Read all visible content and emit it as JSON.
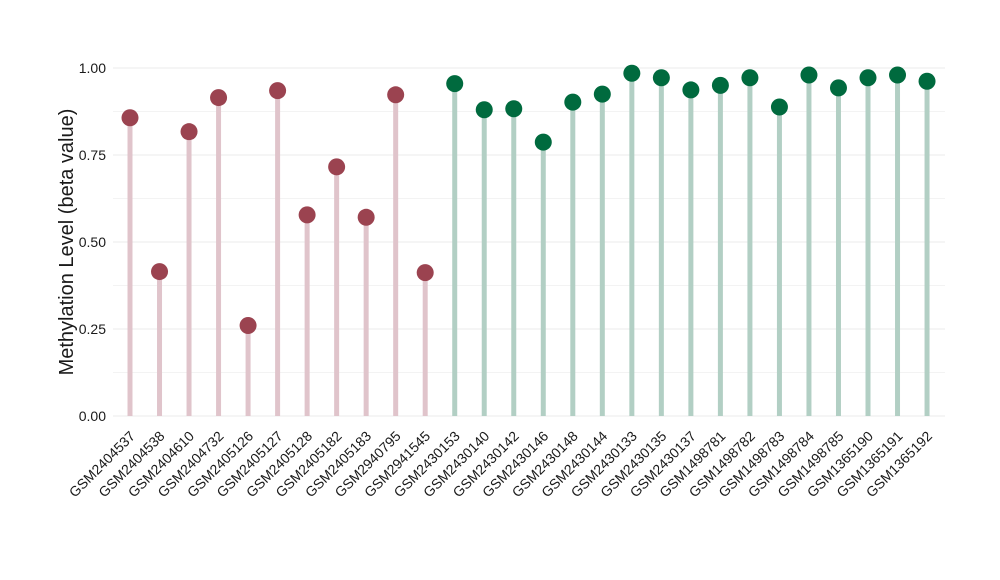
{
  "chart_data": {
    "type": "lollipop",
    "title": "",
    "xlabel": "",
    "ylabel": "Methylation Level (beta value)",
    "ylim": [
      0,
      1
    ],
    "yticks": [
      "0.00",
      "0.25",
      "0.50",
      "0.75",
      "1.00"
    ],
    "grid": true,
    "categories": [
      "GSM2404537",
      "GSM2404538",
      "GSM2404610",
      "GSM2404732",
      "GSM2405126",
      "GSM2405127",
      "GSM2405128",
      "GSM2405182",
      "GSM2405183",
      "GSM2940795",
      "GSM2941545",
      "GSM2430153",
      "GSM2430140",
      "GSM2430142",
      "GSM2430146",
      "GSM2430148",
      "GSM2430144",
      "GSM2430133",
      "GSM2430135",
      "GSM2430137",
      "GSM1498781",
      "GSM1498782",
      "GSM1498783",
      "GSM1498784",
      "GSM1498785",
      "GSM1365190",
      "GSM1365191",
      "GSM1365192"
    ],
    "values": [
      0.857,
      0.415,
      0.817,
      0.915,
      0.26,
      0.935,
      0.578,
      0.716,
      0.571,
      0.923,
      0.412,
      0.955,
      0.88,
      0.883,
      0.787,
      0.902,
      0.925,
      0.985,
      0.972,
      0.937,
      0.95,
      0.972,
      0.888,
      0.98,
      0.943,
      0.972,
      0.98,
      0.962
    ],
    "groups": [
      "a",
      "a",
      "a",
      "a",
      "a",
      "a",
      "a",
      "a",
      "a",
      "a",
      "a",
      "b",
      "b",
      "b",
      "b",
      "b",
      "b",
      "b",
      "b",
      "b",
      "b",
      "b",
      "b",
      "b",
      "b",
      "b",
      "b",
      "b"
    ],
    "colors": {
      "a": {
        "point": "#9b4350",
        "stem": "#e0c4cb"
      },
      "b": {
        "point": "#006a3e",
        "stem": "#b2cfc4"
      },
      "grid": "#ebebeb"
    }
  }
}
